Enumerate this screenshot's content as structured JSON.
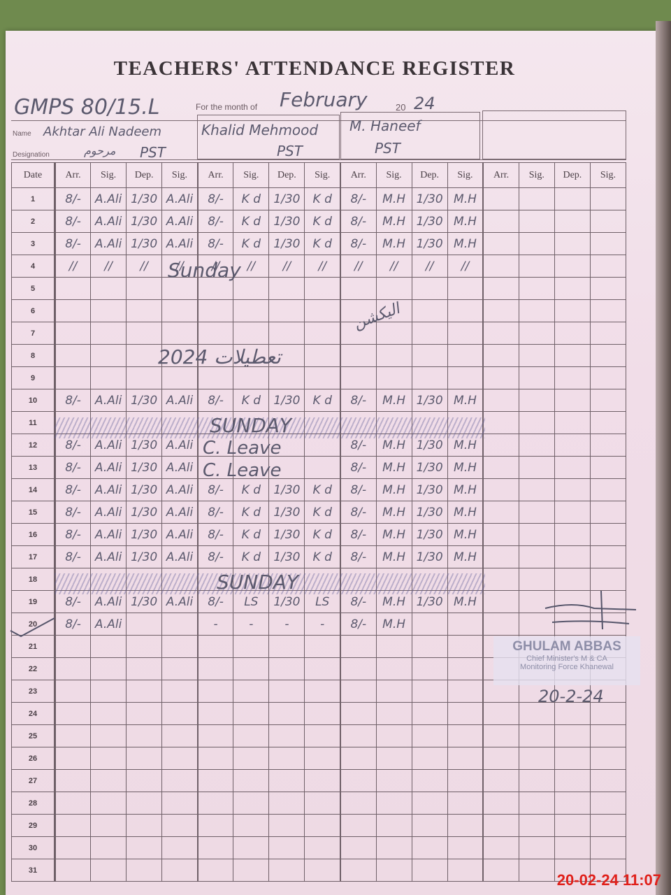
{
  "title": "TEACHERS' ATTENDANCE REGISTER",
  "header": {
    "school": "GMPS 80/15.L",
    "month_label": "For the month of",
    "month": "February",
    "year_prefix": "20",
    "year": "24",
    "name_label": "Name",
    "designation_label": "Designation"
  },
  "teachers": [
    {
      "name": "Akhtar Ali Nadeem",
      "designation": "PST",
      "designation_urdu": "مرحوم"
    },
    {
      "name": "Khalid Mehmood",
      "designation": "PST"
    },
    {
      "name": "M. Haneef",
      "designation": "PST"
    },
    {
      "name": "",
      "designation": ""
    }
  ],
  "columns": {
    "date": "Date",
    "group": [
      "Arr.",
      "Sig.",
      "Dep.",
      "Sig."
    ]
  },
  "rows": [
    {
      "day": "1",
      "cells": [
        "8/-",
        "A.Ali",
        "1/30",
        "A.Ali",
        "8/-",
        "K d",
        "1/30",
        "K d",
        "8/-",
        "M.H",
        "1/30",
        "M.H"
      ]
    },
    {
      "day": "2",
      "cells": [
        "8/-",
        "A.Ali",
        "1/30",
        "A.Ali",
        "8/-",
        "K d",
        "1/30",
        "K d",
        "8/-",
        "M.H",
        "1/30",
        "M.H"
      ]
    },
    {
      "day": "3",
      "cells": [
        "8/-",
        "A.Ali",
        "1/30",
        "A.Ali",
        "8/-",
        "K d",
        "1/30",
        "K d",
        "8/-",
        "M.H",
        "1/30",
        "M.H"
      ]
    },
    {
      "day": "4",
      "cells": [
        "//",
        "//",
        "//",
        "//",
        "//",
        "//",
        "//",
        "//",
        "//",
        "//",
        "//",
        "//"
      ]
    },
    {
      "day": "5",
      "cells": []
    },
    {
      "day": "6",
      "cells": []
    },
    {
      "day": "7",
      "cells": []
    },
    {
      "day": "8",
      "cells": []
    },
    {
      "day": "9",
      "cells": []
    },
    {
      "day": "10",
      "cells": [
        "8/-",
        "A.Ali",
        "1/30",
        "A.Ali",
        "8/-",
        "K d",
        "1/30",
        "K d",
        "8/-",
        "M.H",
        "1/30",
        "M.H"
      ]
    },
    {
      "day": "11",
      "cells": []
    },
    {
      "day": "12",
      "cells": [
        "8/-",
        "A.Ali",
        "1/30",
        "A.Ali",
        "",
        "",
        "",
        "",
        "8/-",
        "M.H",
        "1/30",
        "M.H"
      ]
    },
    {
      "day": "13",
      "cells": [
        "8/-",
        "A.Ali",
        "1/30",
        "A.Ali",
        "",
        "",
        "",
        "",
        "8/-",
        "M.H",
        "1/30",
        "M.H"
      ]
    },
    {
      "day": "14",
      "cells": [
        "8/-",
        "A.Ali",
        "1/30",
        "A.Ali",
        "8/-",
        "K d",
        "1/30",
        "K d",
        "8/-",
        "M.H",
        "1/30",
        "M.H"
      ]
    },
    {
      "day": "15",
      "cells": [
        "8/-",
        "A.Ali",
        "1/30",
        "A.Ali",
        "8/-",
        "K d",
        "1/30",
        "K d",
        "8/-",
        "M.H",
        "1/30",
        "M.H"
      ]
    },
    {
      "day": "16",
      "cells": [
        "8/-",
        "A.Ali",
        "1/30",
        "A.Ali",
        "8/-",
        "K d",
        "1/30",
        "K d",
        "8/-",
        "M.H",
        "1/30",
        "M.H"
      ]
    },
    {
      "day": "17",
      "cells": [
        "8/-",
        "A.Ali",
        "1/30",
        "A.Ali",
        "8/-",
        "K d",
        "1/30",
        "K d",
        "8/-",
        "M.H",
        "1/30",
        "M.H"
      ]
    },
    {
      "day": "18",
      "cells": []
    },
    {
      "day": "19",
      "cells": [
        "8/-",
        "A.Ali",
        "1/30",
        "A.Ali",
        "8/-",
        "LS",
        "1/30",
        "LS",
        "8/-",
        "M.H",
        "1/30",
        "M.H"
      ]
    },
    {
      "day": "20",
      "cells": [
        "8/-",
        "A.Ali",
        "",
        "",
        "-",
        "-",
        "-",
        "-",
        "8/-",
        "M.H",
        "",
        ""
      ]
    },
    {
      "day": "21",
      "cells": []
    },
    {
      "day": "22",
      "cells": []
    },
    {
      "day": "23",
      "cells": []
    },
    {
      "day": "24",
      "cells": []
    },
    {
      "day": "25",
      "cells": []
    },
    {
      "day": "26",
      "cells": []
    },
    {
      "day": "27",
      "cells": []
    },
    {
      "day": "28",
      "cells": []
    },
    {
      "day": "29",
      "cells": []
    },
    {
      "day": "30",
      "cells": []
    },
    {
      "day": "31",
      "cells": []
    }
  ],
  "notes": {
    "sunday_4": "Sunday",
    "sunday_11": "SUNDAY",
    "sunday_18": "SUNDAY",
    "leave_12": "C. Leave",
    "leave_13": "C. Leave",
    "holiday_urdu": "2024 تعطیلات",
    "holiday_urdu_2": "الیکشن"
  },
  "stamp": {
    "name": "GHULAM ABBAS",
    "line1": "Chief Minister's M & CA",
    "line2": "Monitoring Force Khanewal",
    "date": "20-2-24"
  },
  "timestamp": "20-02-24  11:07",
  "colors": {
    "ink": "#5c5a6e",
    "paper": "#f1dde8",
    "timestamp": "#e0201a"
  }
}
